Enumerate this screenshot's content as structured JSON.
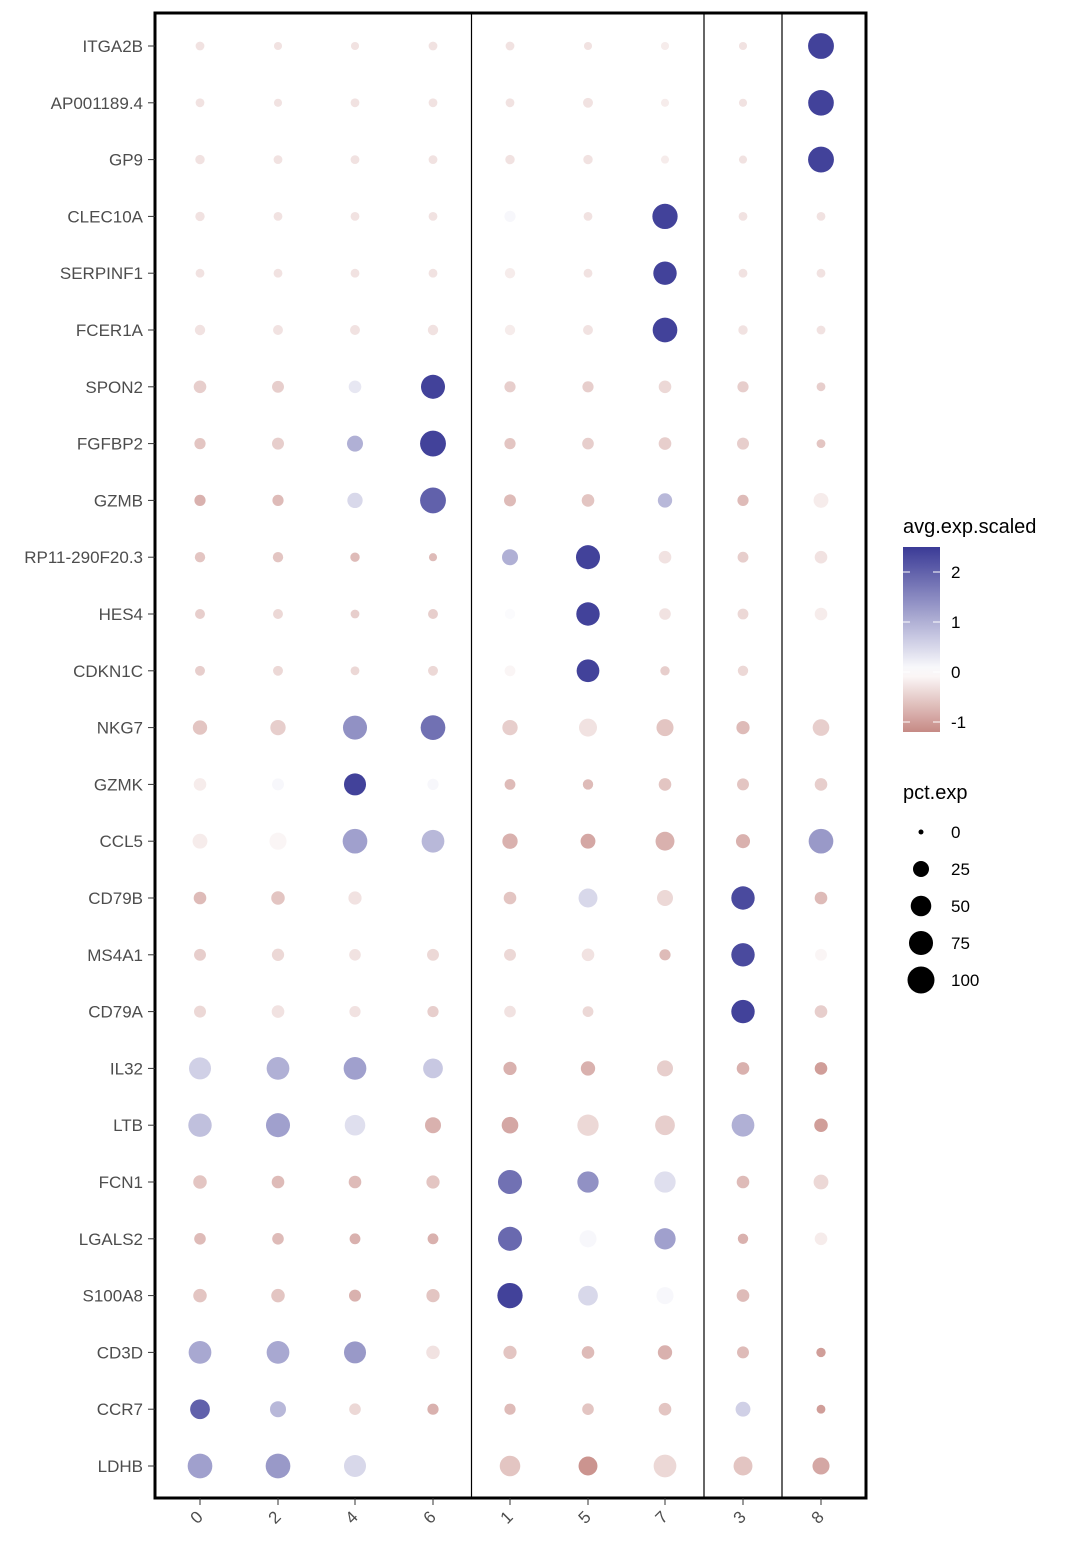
{
  "chart_data": {
    "type": "scatter",
    "subtype": "dot-plot",
    "title": "",
    "xlabel": "",
    "ylabel": "",
    "groups": [
      "0",
      "2",
      "4",
      "6",
      "1",
      "5",
      "7",
      "3",
      "8"
    ],
    "panels": [
      [
        "0",
        "2",
        "4",
        "6"
      ],
      [
        "1",
        "5",
        "7"
      ],
      [
        "3"
      ],
      [
        "8"
      ]
    ],
    "color_legend": {
      "title": "avg.exp.scaled",
      "ticks": [
        2,
        1,
        0,
        -1
      ],
      "range": [
        -1.2,
        2.5
      ],
      "low": "#c68a85",
      "mid": "#ffffff",
      "high": "#3a3a96"
    },
    "size_legend": {
      "title": "pct.exp",
      "ticks": [
        0,
        25,
        50,
        75,
        100
      ]
    },
    "rows": [
      {
        "gene": "ITGA2B",
        "avg_exp_scaled": [
          -0.3,
          -0.3,
          -0.3,
          -0.3,
          -0.3,
          -0.3,
          -0.2,
          -0.3,
          2.4
        ],
        "pct_exp": [
          3,
          2,
          2,
          3,
          3,
          2,
          2,
          2,
          90
        ]
      },
      {
        "gene": "AP001189.4",
        "avg_exp_scaled": [
          -0.3,
          -0.3,
          -0.3,
          -0.3,
          -0.3,
          -0.3,
          -0.2,
          -0.3,
          2.4
        ],
        "pct_exp": [
          3,
          2,
          3,
          3,
          3,
          5,
          2,
          2,
          88
        ]
      },
      {
        "gene": "GP9",
        "avg_exp_scaled": [
          -0.3,
          -0.3,
          -0.3,
          -0.3,
          -0.3,
          -0.3,
          -0.2,
          -0.3,
          2.4
        ],
        "pct_exp": [
          4,
          3,
          3,
          3,
          4,
          4,
          2,
          2,
          90
        ]
      },
      {
        "gene": "CLEC10A",
        "avg_exp_scaled": [
          -0.3,
          -0.3,
          -0.3,
          -0.3,
          0.1,
          -0.3,
          2.4,
          -0.3,
          -0.3
        ],
        "pct_exp": [
          4,
          3,
          3,
          3,
          8,
          3,
          85,
          3,
          3
        ]
      },
      {
        "gene": "SERPINF1",
        "avg_exp_scaled": [
          -0.3,
          -0.3,
          -0.3,
          -0.3,
          -0.2,
          -0.3,
          2.4,
          -0.3,
          -0.3
        ],
        "pct_exp": [
          3,
          3,
          3,
          3,
          6,
          3,
          70,
          3,
          3
        ]
      },
      {
        "gene": "FCER1A",
        "avg_exp_scaled": [
          -0.3,
          -0.3,
          -0.3,
          -0.3,
          -0.2,
          -0.3,
          2.4,
          -0.3,
          -0.3
        ],
        "pct_exp": [
          6,
          5,
          5,
          6,
          6,
          5,
          80,
          4,
          3
        ]
      },
      {
        "gene": "SPON2",
        "avg_exp_scaled": [
          -0.5,
          -0.5,
          0.3,
          2.4,
          -0.5,
          -0.5,
          -0.4,
          -0.5,
          -0.5
        ],
        "pct_exp": [
          12,
          10,
          12,
          75,
          8,
          8,
          12,
          8,
          3
        ]
      },
      {
        "gene": "FGFBP2",
        "avg_exp_scaled": [
          -0.6,
          -0.5,
          1.0,
          2.4,
          -0.6,
          -0.5,
          -0.5,
          -0.5,
          -0.6
        ],
        "pct_exp": [
          8,
          10,
          25,
          90,
          8,
          9,
          12,
          10,
          3
        ]
      },
      {
        "gene": "GZMB",
        "avg_exp_scaled": [
          -0.8,
          -0.7,
          0.5,
          2.0,
          -0.7,
          -0.6,
          0.9,
          -0.7,
          -0.2
        ],
        "pct_exp": [
          8,
          8,
          22,
          90,
          10,
          12,
          18,
          8,
          20
        ]
      },
      {
        "gene": "RP11-290F20.3",
        "avg_exp_scaled": [
          -0.6,
          -0.6,
          -0.7,
          -0.7,
          1.0,
          2.4,
          -0.3,
          -0.5,
          -0.3
        ],
        "pct_exp": [
          6,
          6,
          4,
          2,
          25,
          75,
          12,
          7,
          12
        ]
      },
      {
        "gene": "HES4",
        "avg_exp_scaled": [
          -0.5,
          -0.4,
          -0.5,
          -0.5,
          0.05,
          2.4,
          -0.3,
          -0.4,
          -0.2
        ],
        "pct_exp": [
          5,
          5,
          3,
          5,
          6,
          70,
          9,
          7,
          12
        ]
      },
      {
        "gene": "CDKN1C",
        "avg_exp_scaled": [
          -0.5,
          -0.4,
          -0.4,
          -0.4,
          -0.1,
          2.4,
          -0.5,
          -0.4,
          0.0
        ],
        "pct_exp": [
          5,
          5,
          3,
          5,
          7,
          65,
          4,
          6,
          10
        ]
      },
      {
        "gene": "NKG7",
        "avg_exp_scaled": [
          -0.6,
          -0.5,
          1.4,
          1.8,
          -0.5,
          -0.3,
          -0.6,
          -0.7,
          -0.5
        ],
        "pct_exp": [
          18,
          22,
          75,
          80,
          22,
          35,
          30,
          14,
          28
        ]
      },
      {
        "gene": "GZMK",
        "avg_exp_scaled": [
          -0.2,
          0.1,
          2.4,
          0.1,
          -0.7,
          -0.7,
          -0.6,
          -0.6,
          -0.5
        ],
        "pct_exp": [
          12,
          10,
          60,
          8,
          7,
          6,
          12,
          10,
          12
        ]
      },
      {
        "gene": "CCL5",
        "avg_exp_scaled": [
          -0.2,
          -0.1,
          1.2,
          0.9,
          -0.8,
          -0.9,
          -0.8,
          -0.8,
          1.3
        ],
        "pct_exp": [
          20,
          30,
          80,
          65,
          22,
          20,
          40,
          17,
          80
        ]
      },
      {
        "gene": "CD79B",
        "avg_exp_scaled": [
          -0.7,
          -0.6,
          -0.3,
          0.0,
          -0.6,
          0.5,
          -0.4,
          2.3,
          -0.7
        ],
        "pct_exp": [
          12,
          15,
          14,
          10,
          12,
          40,
          25,
          70,
          12
        ]
      },
      {
        "gene": "MS4A1",
        "avg_exp_scaled": [
          -0.5,
          -0.4,
          -0.3,
          -0.4,
          -0.4,
          -0.3,
          -0.7,
          2.3,
          -0.1
        ],
        "pct_exp": [
          10,
          11,
          9,
          10,
          10,
          12,
          8,
          70,
          10
        ]
      },
      {
        "gene": "CD79A",
        "avg_exp_scaled": [
          -0.4,
          -0.3,
          -0.3,
          -0.5,
          -0.3,
          -0.4,
          0.0,
          2.4,
          -0.5
        ],
        "pct_exp": [
          10,
          12,
          8,
          8,
          9,
          7,
          5,
          70,
          12
        ]
      },
      {
        "gene": "IL32",
        "avg_exp_scaled": [
          0.6,
          1.0,
          1.2,
          0.7,
          -0.8,
          -0.8,
          -0.5,
          -0.8,
          -1.0
        ],
        "pct_exp": [
          60,
          65,
          65,
          45,
          14,
          18,
          25,
          12,
          12
        ]
      },
      {
        "gene": "LTB",
        "avg_exp_scaled": [
          0.8,
          1.2,
          0.4,
          -0.8,
          -0.9,
          -0.4,
          -0.5,
          1.0,
          -1.0
        ],
        "pct_exp": [
          70,
          75,
          50,
          25,
          28,
          55,
          45,
          65,
          15
        ]
      },
      {
        "gene": "FCN1",
        "avg_exp_scaled": [
          -0.6,
          -0.7,
          -0.7,
          -0.6,
          1.8,
          1.4,
          0.4,
          -0.7,
          -0.4
        ],
        "pct_exp": [
          15,
          12,
          12,
          14,
          75,
          55,
          55,
          12,
          20
        ]
      },
      {
        "gene": "LGALS2",
        "avg_exp_scaled": [
          -0.7,
          -0.7,
          -0.8,
          -0.8,
          1.9,
          0.1,
          1.2,
          -0.8,
          -0.2
        ],
        "pct_exp": [
          9,
          9,
          7,
          7,
          75,
          30,
          55,
          6,
          12
        ]
      },
      {
        "gene": "S100A8",
        "avg_exp_scaled": [
          -0.6,
          -0.6,
          -0.8,
          -0.6,
          2.4,
          0.5,
          0.1,
          -0.7,
          0.0
        ],
        "pct_exp": [
          15,
          15,
          10,
          14,
          85,
          45,
          30,
          12,
          8
        ]
      },
      {
        "gene": "CD3D",
        "avg_exp_scaled": [
          1.1,
          1.1,
          1.3,
          -0.3,
          -0.6,
          -0.7,
          -0.8,
          -0.7,
          -1.0
        ],
        "pct_exp": [
          65,
          65,
          60,
          15,
          14,
          12,
          18,
          10,
          4
        ]
      },
      {
        "gene": "CCR7",
        "avg_exp_scaled": [
          2.0,
          0.9,
          -0.4,
          -0.8,
          -0.7,
          -0.6,
          -0.6,
          0.6,
          -1.0
        ],
        "pct_exp": [
          45,
          25,
          9,
          8,
          8,
          9,
          12,
          20,
          3
        ]
      },
      {
        "gene": "LDHB",
        "avg_exp_scaled": [
          1.2,
          1.3,
          0.5,
          0.0,
          -0.6,
          -1.1,
          -0.4,
          -0.6,
          -0.9
        ],
        "pct_exp": [
          80,
          80,
          60,
          40,
          50,
          40,
          65,
          40,
          30
        ]
      }
    ]
  }
}
